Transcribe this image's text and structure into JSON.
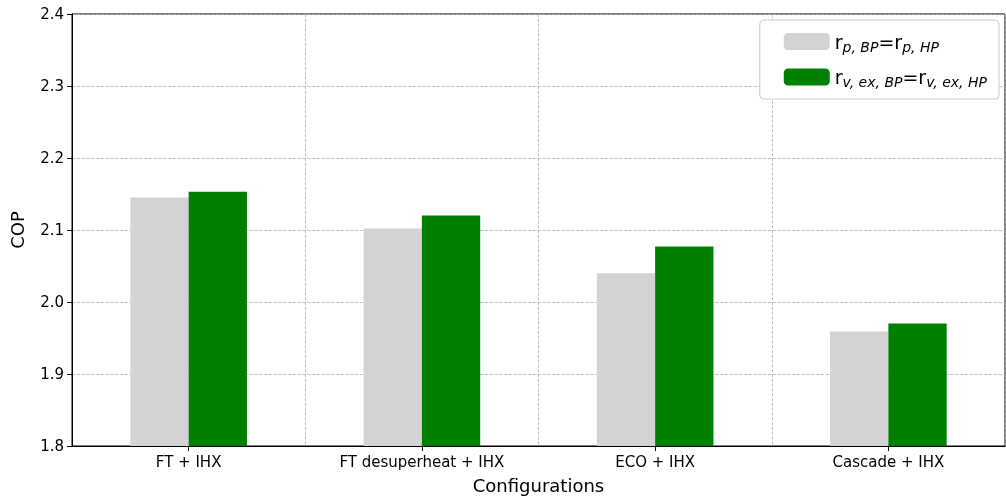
{
  "chart_data": {
    "type": "bar",
    "xlabel": "Configurations",
    "ylabel": "COP",
    "categories": [
      "FT + IHX",
      "FT desuperheat + IHX",
      "ECO + IHX",
      "Cascade + IHX"
    ],
    "series": [
      {
        "name": "r$_{p, BP}$=r$_{p, HP}$",
        "color": "#d3d3d3",
        "values": [
          2.145,
          2.102,
          2.04,
          1.959
        ]
      },
      {
        "name": "r$_{v, ex, BP}$=r$_{v, ex, HP}$",
        "color": "#008000",
        "values": [
          2.153,
          2.12,
          2.077,
          1.97
        ]
      }
    ],
    "ylim": [
      1.8,
      2.4
    ],
    "yticks": [
      1.8,
      1.9,
      {
        "value": 2,
        "label": "2.0"
      },
      2.1,
      2.2,
      2.3,
      2.4
    ],
    "grid": true,
    "legend": "top right"
  }
}
